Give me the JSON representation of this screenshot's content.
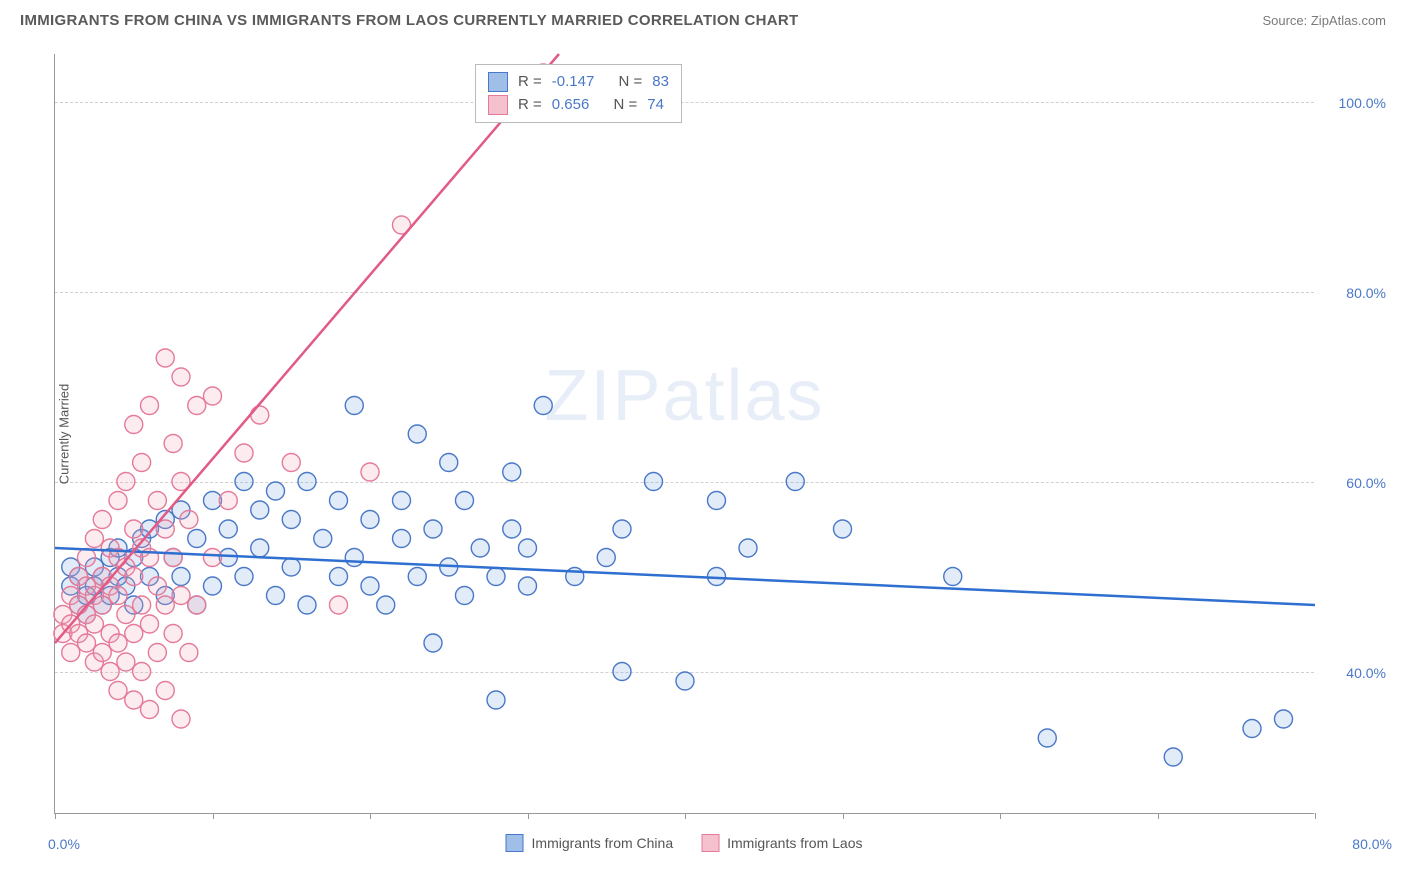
{
  "header": {
    "title": "IMMIGRANTS FROM CHINA VS IMMIGRANTS FROM LAOS CURRENTLY MARRIED CORRELATION CHART",
    "source": "Source: ZipAtlas.com"
  },
  "watermark": "ZIPatlas",
  "chart": {
    "type": "scatter",
    "y_label": "Currently Married",
    "xlim": [
      0,
      80
    ],
    "ylim": [
      25,
      105
    ],
    "x_axis_min_label": "0.0%",
    "x_axis_max_label": "80.0%",
    "x_ticks": [
      0,
      10,
      20,
      30,
      40,
      50,
      60,
      70,
      80
    ],
    "y_gridlines": [
      40,
      60,
      80,
      100
    ],
    "y_tick_labels": [
      "40.0%",
      "60.0%",
      "80.0%",
      "100.0%"
    ],
    "background_color": "#ffffff",
    "grid_color": "#d0d0d0",
    "axis_color": "#999999",
    "tick_label_color": "#4a78c8",
    "marker_radius": 9,
    "marker_stroke_width": 1.4,
    "marker_fill_opacity": 0.22,
    "trendline_width": 2.5,
    "series": [
      {
        "name": "Immigrants from China",
        "fill": "#7aa3de",
        "stroke": "#4a78c8",
        "trend_stroke": "#2f6fd0",
        "trend": {
          "x1": 0,
          "y1": 53,
          "x2": 80,
          "y2": 47
        },
        "stats": {
          "R": "-0.147",
          "N": "83"
        },
        "points": [
          [
            1,
            49
          ],
          [
            1,
            51
          ],
          [
            1.5,
            47
          ],
          [
            1.5,
            50
          ],
          [
            2,
            46
          ],
          [
            2,
            48
          ],
          [
            2.5,
            49
          ],
          [
            2.5,
            51
          ],
          [
            3,
            47
          ],
          [
            3,
            50
          ],
          [
            3.5,
            48
          ],
          [
            3.5,
            52
          ],
          [
            4,
            50
          ],
          [
            4,
            53
          ],
          [
            4.5,
            49
          ],
          [
            5,
            47
          ],
          [
            5,
            52
          ],
          [
            5.5,
            54
          ],
          [
            6,
            50
          ],
          [
            6,
            55
          ],
          [
            7,
            48
          ],
          [
            7,
            56
          ],
          [
            7.5,
            52
          ],
          [
            8,
            50
          ],
          [
            8,
            57
          ],
          [
            9,
            47
          ],
          [
            9,
            54
          ],
          [
            10,
            49
          ],
          [
            10,
            58
          ],
          [
            11,
            52
          ],
          [
            11,
            55
          ],
          [
            12,
            50
          ],
          [
            12,
            60
          ],
          [
            13,
            53
          ],
          [
            13,
            57
          ],
          [
            14,
            48
          ],
          [
            14,
            59
          ],
          [
            15,
            51
          ],
          [
            15,
            56
          ],
          [
            16,
            47
          ],
          [
            16,
            60
          ],
          [
            17,
            54
          ],
          [
            18,
            50
          ],
          [
            18,
            58
          ],
          [
            19,
            52
          ],
          [
            19,
            68
          ],
          [
            20,
            49
          ],
          [
            20,
            56
          ],
          [
            21,
            47
          ],
          [
            22,
            54
          ],
          [
            22,
            58
          ],
          [
            23,
            50
          ],
          [
            23,
            65
          ],
          [
            24,
            43
          ],
          [
            24,
            55
          ],
          [
            25,
            51
          ],
          [
            25,
            62
          ],
          [
            26,
            48
          ],
          [
            26,
            58
          ],
          [
            27,
            53
          ],
          [
            28,
            37
          ],
          [
            28,
            50
          ],
          [
            29,
            55
          ],
          [
            29,
            61
          ],
          [
            30,
            49
          ],
          [
            30,
            53
          ],
          [
            31,
            68
          ],
          [
            33,
            50
          ],
          [
            35,
            52
          ],
          [
            36,
            40
          ],
          [
            36,
            55
          ],
          [
            38,
            60
          ],
          [
            40,
            39
          ],
          [
            42,
            50
          ],
          [
            42,
            58
          ],
          [
            44,
            53
          ],
          [
            47,
            60
          ],
          [
            50,
            55
          ],
          [
            57,
            50
          ],
          [
            63,
            33
          ],
          [
            71,
            31
          ],
          [
            76,
            34
          ],
          [
            78,
            35
          ]
        ]
      },
      {
        "name": "Immigrants from Laos",
        "fill": "#f3a8bb",
        "stroke": "#e57a99",
        "trend_stroke": "#e25a86",
        "trend": {
          "x1": 0,
          "y1": 43,
          "x2": 32,
          "y2": 105
        },
        "stats": {
          "R": "0.656",
          "N": "74"
        },
        "points": [
          [
            0.5,
            44
          ],
          [
            0.5,
            46
          ],
          [
            1,
            42
          ],
          [
            1,
            45
          ],
          [
            1,
            48
          ],
          [
            1.5,
            44
          ],
          [
            1.5,
            47
          ],
          [
            1.5,
            50
          ],
          [
            2,
            43
          ],
          [
            2,
            46
          ],
          [
            2,
            49
          ],
          [
            2,
            52
          ],
          [
            2.5,
            41
          ],
          [
            2.5,
            45
          ],
          [
            2.5,
            48
          ],
          [
            2.5,
            54
          ],
          [
            3,
            42
          ],
          [
            3,
            47
          ],
          [
            3,
            50
          ],
          [
            3,
            56
          ],
          [
            3.5,
            40
          ],
          [
            3.5,
            44
          ],
          [
            3.5,
            49
          ],
          [
            3.5,
            53
          ],
          [
            4,
            38
          ],
          [
            4,
            43
          ],
          [
            4,
            48
          ],
          [
            4,
            52
          ],
          [
            4,
            58
          ],
          [
            4.5,
            41
          ],
          [
            4.5,
            46
          ],
          [
            4.5,
            51
          ],
          [
            4.5,
            60
          ],
          [
            5,
            37
          ],
          [
            5,
            44
          ],
          [
            5,
            50
          ],
          [
            5,
            55
          ],
          [
            5,
            66
          ],
          [
            5.5,
            40
          ],
          [
            5.5,
            47
          ],
          [
            5.5,
            53
          ],
          [
            5.5,
            62
          ],
          [
            6,
            36
          ],
          [
            6,
            45
          ],
          [
            6,
            52
          ],
          [
            6,
            68
          ],
          [
            6.5,
            42
          ],
          [
            6.5,
            49
          ],
          [
            6.5,
            58
          ],
          [
            7,
            38
          ],
          [
            7,
            47
          ],
          [
            7,
            55
          ],
          [
            7,
            73
          ],
          [
            7.5,
            44
          ],
          [
            7.5,
            52
          ],
          [
            7.5,
            64
          ],
          [
            8,
            35
          ],
          [
            8,
            48
          ],
          [
            8,
            60
          ],
          [
            8,
            71
          ],
          [
            8.5,
            42
          ],
          [
            8.5,
            56
          ],
          [
            9,
            47
          ],
          [
            9,
            68
          ],
          [
            10,
            52
          ],
          [
            10,
            69
          ],
          [
            11,
            58
          ],
          [
            12,
            63
          ],
          [
            13,
            67
          ],
          [
            15,
            62
          ],
          [
            18,
            47
          ],
          [
            20,
            61
          ],
          [
            22,
            87
          ],
          [
            31,
            103
          ]
        ]
      }
    ],
    "legend": {
      "bottom": [
        {
          "label": "Immigrants from China",
          "fill": "#9fbfe8",
          "stroke": "#4a78c8"
        },
        {
          "label": "Immigrants from Laos",
          "fill": "#f6c1cf",
          "stroke": "#e57a99"
        }
      ]
    },
    "stats_box": {
      "rows": [
        {
          "fill": "#9fbfe8",
          "stroke": "#4a78c8",
          "R_label": "R =",
          "R": "-0.147",
          "N_label": "N =",
          "N": "83"
        },
        {
          "fill": "#f6c1cf",
          "stroke": "#e57a99",
          "R_label": "R =",
          "R": "0.656",
          "N_label": "N =",
          "N": "74"
        }
      ]
    }
  }
}
